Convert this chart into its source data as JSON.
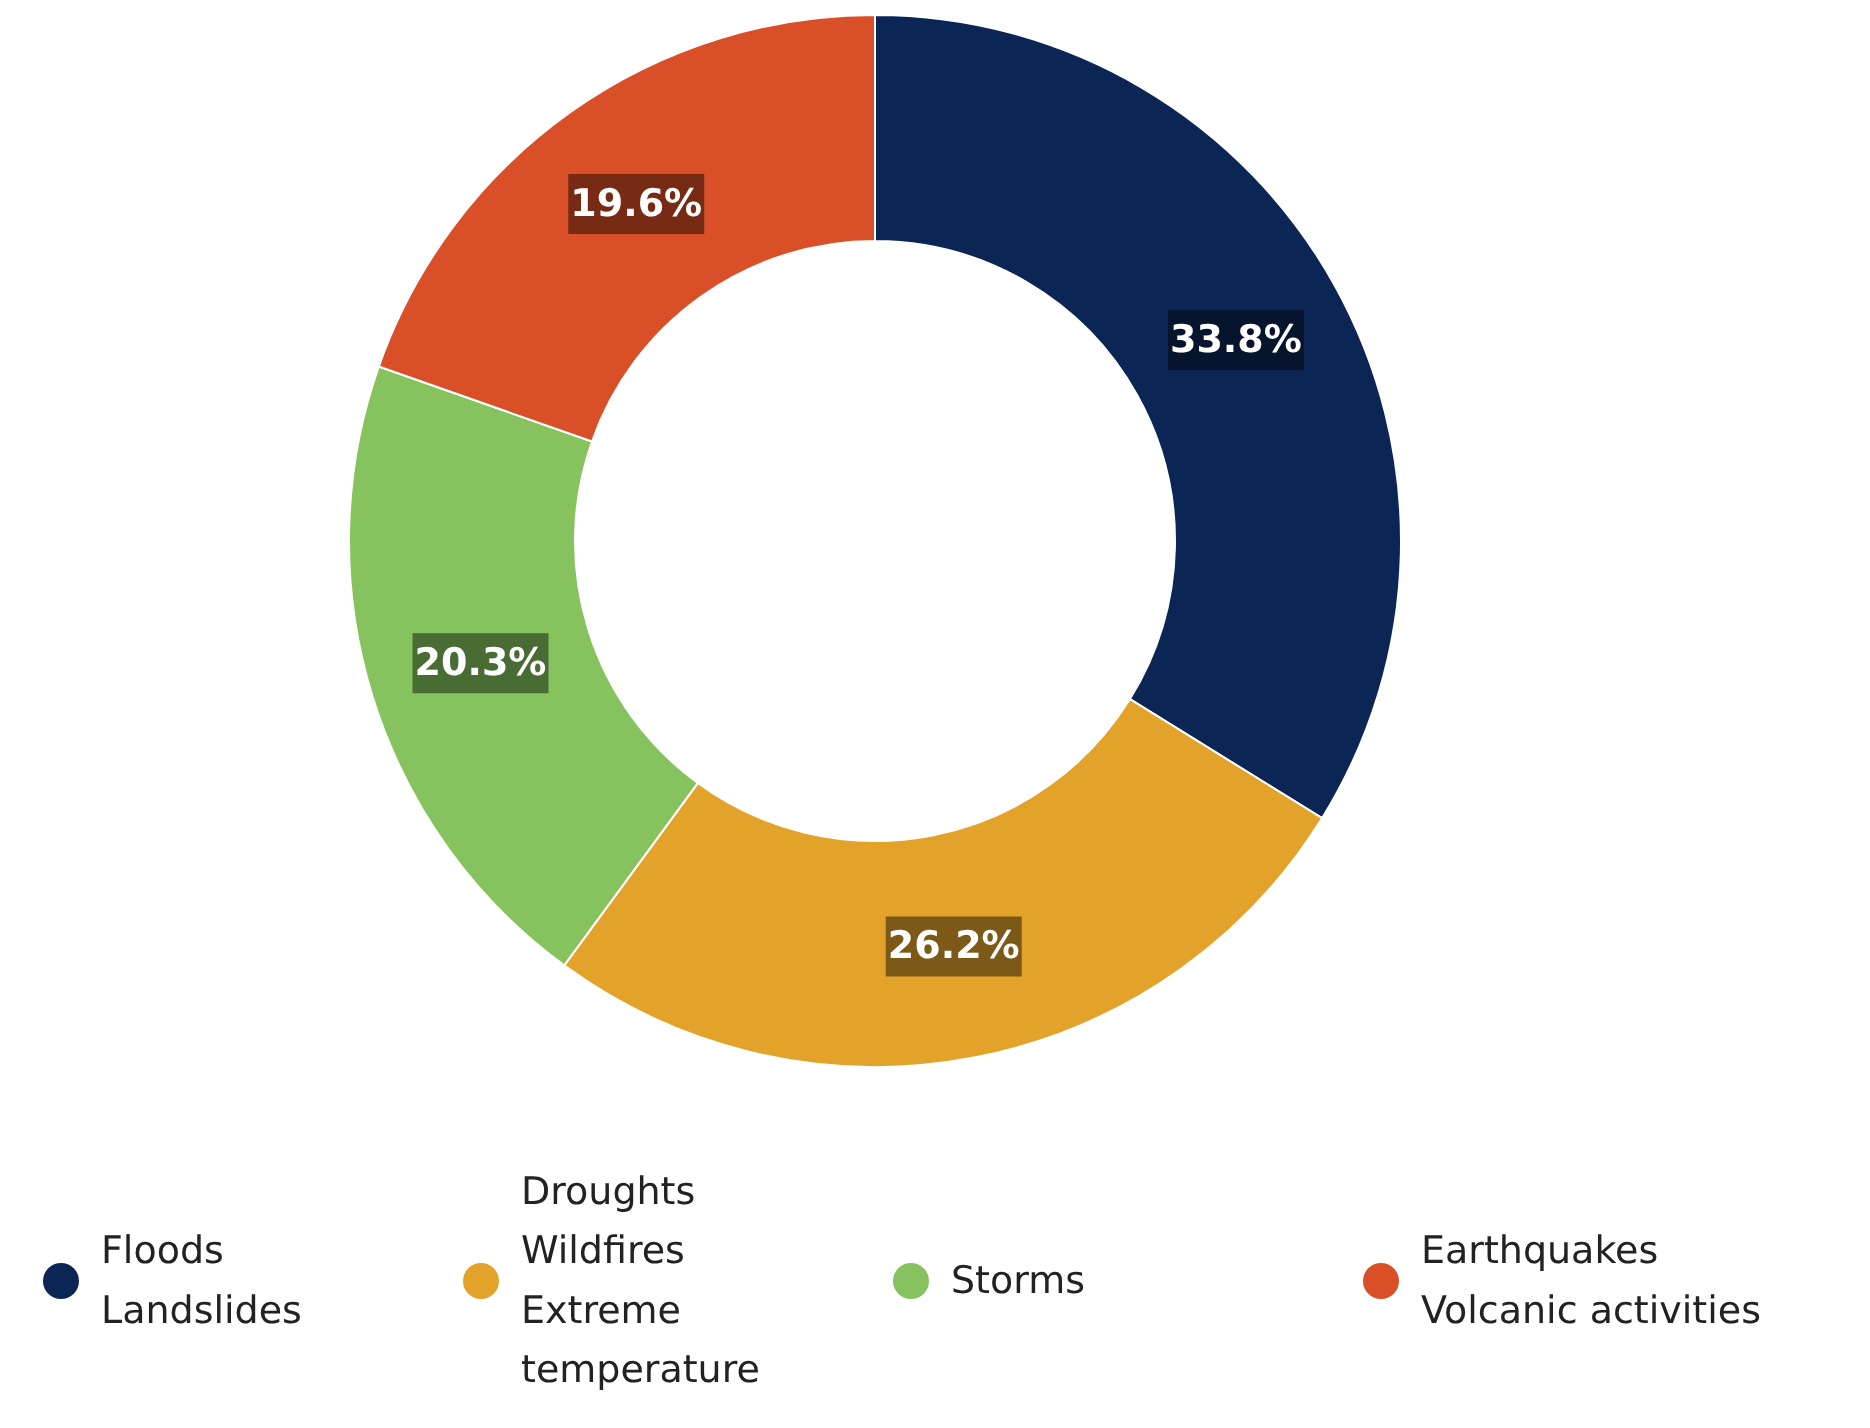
{
  "chart_data": {
    "type": "donut",
    "categories": [
      "Floods\nLandslides",
      "Droughts\nWildfires\nExtreme\ntemperature",
      "Storms",
      "Earthquakes\nVolcanic activities"
    ],
    "values": [
      33.8,
      26.2,
      20.3,
      19.6
    ],
    "colors": [
      "#0b2655",
      "#e3a32a",
      "#86c35f",
      "#d94f27"
    ],
    "value_labels": [
      "33.8%",
      "26.2%",
      "20.3%",
      "19.6%"
    ],
    "legend": "bottom"
  }
}
